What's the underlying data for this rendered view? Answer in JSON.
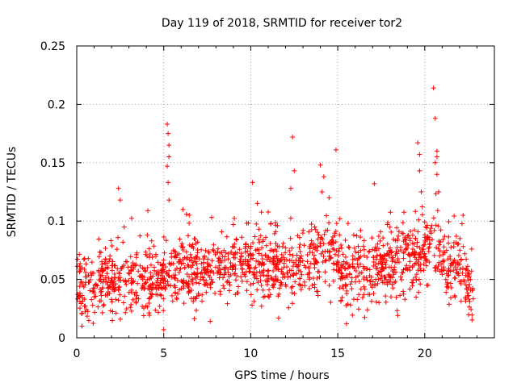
{
  "chart_data": {
    "type": "scatter",
    "title": "Day 119 of 2018, SRMTID for receiver tor2",
    "xlabel": "GPS time / hours",
    "ylabel": "SRMTID / TECUs",
    "xlim": [
      0,
      24
    ],
    "ylim": [
      0,
      0.25
    ],
    "x_ticks": [
      0,
      5,
      10,
      15,
      20
    ],
    "y_ticks": [
      0,
      0.05,
      0.1,
      0.15,
      0.2,
      0.25
    ],
    "x_tick_labels": [
      "0",
      "5",
      "10",
      "15",
      "20"
    ],
    "y_tick_labels": [
      "0",
      "0.05",
      "0.1",
      "0.15",
      "0.2",
      "0.25"
    ],
    "grid": true,
    "marker": "+",
    "color": "#ff0000",
    "n_points": 1600,
    "seed": 119,
    "x_range": [
      0,
      22.8
    ],
    "baseline_profile": [
      [
        0.0,
        0.04
      ],
      [
        1.5,
        0.048
      ],
      [
        3.0,
        0.045
      ],
      [
        4.5,
        0.05
      ],
      [
        5.5,
        0.058
      ],
      [
        7.0,
        0.055
      ],
      [
        8.5,
        0.062
      ],
      [
        10.0,
        0.065
      ],
      [
        11.5,
        0.06
      ],
      [
        13.0,
        0.062
      ],
      [
        14.3,
        0.075
      ],
      [
        15.5,
        0.05
      ],
      [
        17.0,
        0.058
      ],
      [
        18.5,
        0.066
      ],
      [
        20.0,
        0.075
      ],
      [
        21.0,
        0.072
      ],
      [
        22.0,
        0.055
      ],
      [
        22.8,
        0.04
      ]
    ],
    "spread": 0.015,
    "outliers": [
      {
        "x": 0.3,
        "y": 0.01
      },
      {
        "x": 2.4,
        "y": 0.128
      },
      {
        "x": 2.5,
        "y": 0.118
      },
      {
        "x": 5.0,
        "y": 0.007
      },
      {
        "x": 5.2,
        "y": 0.183
      },
      {
        "x": 5.25,
        "y": 0.175
      },
      {
        "x": 5.3,
        "y": 0.165
      },
      {
        "x": 5.3,
        "y": 0.155
      },
      {
        "x": 5.2,
        "y": 0.147
      },
      {
        "x": 5.25,
        "y": 0.133
      },
      {
        "x": 5.3,
        "y": 0.118
      },
      {
        "x": 6.1,
        "y": 0.11
      },
      {
        "x": 10.1,
        "y": 0.133
      },
      {
        "x": 12.4,
        "y": 0.172
      },
      {
        "x": 12.5,
        "y": 0.143
      },
      {
        "x": 12.3,
        "y": 0.128
      },
      {
        "x": 14.0,
        "y": 0.148
      },
      {
        "x": 14.2,
        "y": 0.138
      },
      {
        "x": 14.1,
        "y": 0.125
      },
      {
        "x": 14.5,
        "y": 0.12
      },
      {
        "x": 14.9,
        "y": 0.161
      },
      {
        "x": 15.5,
        "y": 0.012
      },
      {
        "x": 17.1,
        "y": 0.132
      },
      {
        "x": 19.6,
        "y": 0.167
      },
      {
        "x": 19.7,
        "y": 0.157
      },
      {
        "x": 19.7,
        "y": 0.143
      },
      {
        "x": 19.8,
        "y": 0.125
      },
      {
        "x": 20.5,
        "y": 0.214
      },
      {
        "x": 20.6,
        "y": 0.188
      },
      {
        "x": 20.7,
        "y": 0.16
      },
      {
        "x": 20.7,
        "y": 0.155
      },
      {
        "x": 20.6,
        "y": 0.15
      },
      {
        "x": 20.7,
        "y": 0.14
      },
      {
        "x": 20.8,
        "y": 0.125
      },
      {
        "x": 22.2,
        "y": 0.105
      }
    ]
  }
}
